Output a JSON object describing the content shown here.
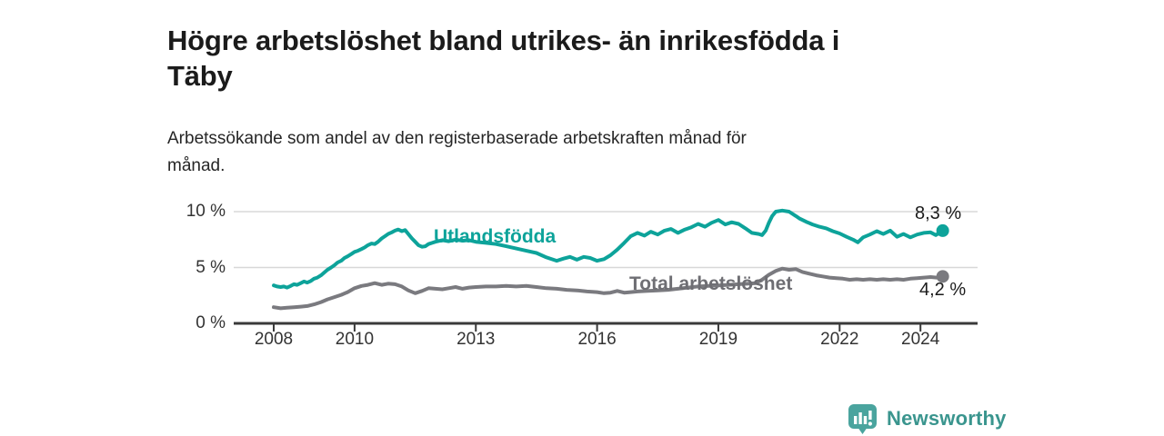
{
  "header": {
    "title_lines": [
      "Högre arbetslöshet bland utrikes- än inrikesfödda i",
      "Täby"
    ],
    "subtitle_lines": [
      "Arbetssökande som andel av den registerbaserade arbetskraften månad för",
      "månad."
    ]
  },
  "chart_data": {
    "type": "line",
    "title": "Högre arbetslöshet bland utrikes- än inrikesfödda i Täby",
    "subtitle": "Arbetssökande som andel av den registerbaserade arbetskraften månad för månad.",
    "unit": "%",
    "grid": "horizontal",
    "grid_color": "#d8d8d8",
    "axis_color": "#3a3a3a",
    "ylim": [
      0,
      10
    ],
    "y_ticks": [
      {
        "value": 0,
        "label": "0 %"
      },
      {
        "value": 5,
        "label": "5 %"
      },
      {
        "value": 10,
        "label": "10 %"
      }
    ],
    "x_ticks": [
      2008,
      2010,
      2013,
      2016,
      2019,
      2022,
      2024
    ],
    "xlim_years": [
      2008,
      2024.55
    ],
    "series": [
      {
        "name": "Utlandsfödda",
        "color": "#0da39a",
        "label_color": "#0da39a",
        "end_label": "8,3 %",
        "end_value": 8.3,
        "points": [
          [
            2008.0,
            3.4
          ],
          [
            2008.08,
            3.3
          ],
          [
            2008.17,
            3.25
          ],
          [
            2008.25,
            3.3
          ],
          [
            2008.33,
            3.2
          ],
          [
            2008.42,
            3.35
          ],
          [
            2008.5,
            3.5
          ],
          [
            2008.58,
            3.45
          ],
          [
            2008.67,
            3.6
          ],
          [
            2008.75,
            3.75
          ],
          [
            2008.83,
            3.65
          ],
          [
            2008.92,
            3.8
          ],
          [
            2009.0,
            4.0
          ],
          [
            2009.08,
            4.1
          ],
          [
            2009.17,
            4.3
          ],
          [
            2009.25,
            4.55
          ],
          [
            2009.33,
            4.8
          ],
          [
            2009.42,
            5.0
          ],
          [
            2009.5,
            5.2
          ],
          [
            2009.58,
            5.45
          ],
          [
            2009.67,
            5.6
          ],
          [
            2009.75,
            5.85
          ],
          [
            2009.83,
            6.0
          ],
          [
            2009.92,
            6.2
          ],
          [
            2010.0,
            6.4
          ],
          [
            2010.08,
            6.5
          ],
          [
            2010.17,
            6.65
          ],
          [
            2010.25,
            6.8
          ],
          [
            2010.33,
            7.0
          ],
          [
            2010.42,
            7.15
          ],
          [
            2010.5,
            7.1
          ],
          [
            2010.58,
            7.3
          ],
          [
            2010.67,
            7.6
          ],
          [
            2010.75,
            7.8
          ],
          [
            2010.83,
            8.0
          ],
          [
            2010.92,
            8.15
          ],
          [
            2011.0,
            8.3
          ],
          [
            2011.08,
            8.4
          ],
          [
            2011.17,
            8.25
          ],
          [
            2011.25,
            8.35
          ],
          [
            2011.33,
            8.0
          ],
          [
            2011.42,
            7.6
          ],
          [
            2011.5,
            7.3
          ],
          [
            2011.58,
            7.0
          ],
          [
            2011.67,
            6.85
          ],
          [
            2011.75,
            6.9
          ],
          [
            2011.83,
            7.1
          ],
          [
            2011.92,
            7.2
          ],
          [
            2012.0,
            7.3
          ],
          [
            2012.17,
            7.45
          ],
          [
            2012.33,
            7.35
          ],
          [
            2012.5,
            7.5
          ],
          [
            2012.67,
            7.4
          ],
          [
            2012.83,
            7.45
          ],
          [
            2013.0,
            7.3
          ],
          [
            2013.25,
            7.2
          ],
          [
            2013.5,
            7.1
          ],
          [
            2013.75,
            6.9
          ],
          [
            2014.0,
            6.7
          ],
          [
            2014.25,
            6.5
          ],
          [
            2014.5,
            6.3
          ],
          [
            2014.75,
            5.9
          ],
          [
            2015.0,
            5.6
          ],
          [
            2015.17,
            5.8
          ],
          [
            2015.33,
            5.95
          ],
          [
            2015.5,
            5.7
          ],
          [
            2015.67,
            5.95
          ],
          [
            2015.83,
            5.85
          ],
          [
            2016.0,
            5.6
          ],
          [
            2016.17,
            5.75
          ],
          [
            2016.33,
            6.1
          ],
          [
            2016.5,
            6.6
          ],
          [
            2016.67,
            7.2
          ],
          [
            2016.83,
            7.8
          ],
          [
            2017.0,
            8.1
          ],
          [
            2017.17,
            7.85
          ],
          [
            2017.33,
            8.2
          ],
          [
            2017.5,
            7.95
          ],
          [
            2017.67,
            8.3
          ],
          [
            2017.83,
            8.45
          ],
          [
            2018.0,
            8.1
          ],
          [
            2018.17,
            8.4
          ],
          [
            2018.33,
            8.6
          ],
          [
            2018.5,
            8.9
          ],
          [
            2018.67,
            8.65
          ],
          [
            2018.83,
            9.0
          ],
          [
            2019.0,
            9.25
          ],
          [
            2019.17,
            8.85
          ],
          [
            2019.33,
            9.05
          ],
          [
            2019.5,
            8.9
          ],
          [
            2019.67,
            8.5
          ],
          [
            2019.83,
            8.1
          ],
          [
            2020.0,
            8.0
          ],
          [
            2020.08,
            7.9
          ],
          [
            2020.17,
            8.3
          ],
          [
            2020.25,
            9.0
          ],
          [
            2020.33,
            9.6
          ],
          [
            2020.42,
            10.0
          ],
          [
            2020.58,
            10.1
          ],
          [
            2020.75,
            10.0
          ],
          [
            2020.92,
            9.6
          ],
          [
            2021.0,
            9.4
          ],
          [
            2021.17,
            9.1
          ],
          [
            2021.33,
            8.85
          ],
          [
            2021.5,
            8.65
          ],
          [
            2021.67,
            8.5
          ],
          [
            2021.83,
            8.25
          ],
          [
            2022.0,
            8.05
          ],
          [
            2022.17,
            7.75
          ],
          [
            2022.33,
            7.5
          ],
          [
            2022.45,
            7.25
          ],
          [
            2022.58,
            7.7
          ],
          [
            2022.75,
            7.95
          ],
          [
            2022.92,
            8.25
          ],
          [
            2023.08,
            8.0
          ],
          [
            2023.25,
            8.3
          ],
          [
            2023.42,
            7.75
          ],
          [
            2023.58,
            8.0
          ],
          [
            2023.75,
            7.7
          ],
          [
            2023.92,
            7.95
          ],
          [
            2024.08,
            8.1
          ],
          [
            2024.25,
            8.15
          ],
          [
            2024.38,
            7.9
          ],
          [
            2024.55,
            8.3
          ]
        ]
      },
      {
        "name": "Total arbetslöshet",
        "color": "#7a7a7f",
        "label_color": "#6e6e73",
        "end_label": "4,2 %",
        "end_value": 4.2,
        "points": [
          [
            2008.0,
            1.45
          ],
          [
            2008.17,
            1.35
          ],
          [
            2008.33,
            1.4
          ],
          [
            2008.5,
            1.45
          ],
          [
            2008.67,
            1.5
          ],
          [
            2008.83,
            1.55
          ],
          [
            2009.0,
            1.7
          ],
          [
            2009.17,
            1.9
          ],
          [
            2009.33,
            2.15
          ],
          [
            2009.5,
            2.35
          ],
          [
            2009.67,
            2.55
          ],
          [
            2009.83,
            2.8
          ],
          [
            2010.0,
            3.15
          ],
          [
            2010.17,
            3.35
          ],
          [
            2010.33,
            3.45
          ],
          [
            2010.5,
            3.6
          ],
          [
            2010.67,
            3.45
          ],
          [
            2010.83,
            3.55
          ],
          [
            2011.0,
            3.5
          ],
          [
            2011.17,
            3.3
          ],
          [
            2011.33,
            2.95
          ],
          [
            2011.5,
            2.7
          ],
          [
            2011.67,
            2.9
          ],
          [
            2011.83,
            3.15
          ],
          [
            2012.0,
            3.1
          ],
          [
            2012.17,
            3.05
          ],
          [
            2012.33,
            3.15
          ],
          [
            2012.5,
            3.25
          ],
          [
            2012.67,
            3.1
          ],
          [
            2012.83,
            3.2
          ],
          [
            2013.0,
            3.25
          ],
          [
            2013.25,
            3.3
          ],
          [
            2013.5,
            3.3
          ],
          [
            2013.75,
            3.35
          ],
          [
            2014.0,
            3.3
          ],
          [
            2014.25,
            3.35
          ],
          [
            2014.5,
            3.25
          ],
          [
            2014.75,
            3.15
          ],
          [
            2015.0,
            3.1
          ],
          [
            2015.25,
            3.0
          ],
          [
            2015.5,
            2.95
          ],
          [
            2015.75,
            2.85
          ],
          [
            2016.0,
            2.8
          ],
          [
            2016.17,
            2.7
          ],
          [
            2016.33,
            2.75
          ],
          [
            2016.5,
            2.9
          ],
          [
            2016.67,
            2.75
          ],
          [
            2016.83,
            2.8
          ],
          [
            2017.0,
            2.85
          ],
          [
            2017.25,
            2.9
          ],
          [
            2017.5,
            2.95
          ],
          [
            2017.75,
            3.0
          ],
          [
            2018.0,
            3.1
          ],
          [
            2018.25,
            3.2
          ],
          [
            2018.5,
            3.3
          ],
          [
            2018.75,
            3.35
          ],
          [
            2019.0,
            3.4
          ],
          [
            2019.25,
            3.45
          ],
          [
            2019.5,
            3.5
          ],
          [
            2019.75,
            3.55
          ],
          [
            2019.92,
            3.6
          ],
          [
            2020.08,
            3.9
          ],
          [
            2020.25,
            4.35
          ],
          [
            2020.42,
            4.7
          ],
          [
            2020.58,
            4.9
          ],
          [
            2020.75,
            4.8
          ],
          [
            2020.92,
            4.85
          ],
          [
            2021.08,
            4.6
          ],
          [
            2021.25,
            4.45
          ],
          [
            2021.42,
            4.3
          ],
          [
            2021.58,
            4.2
          ],
          [
            2021.75,
            4.1
          ],
          [
            2021.92,
            4.05
          ],
          [
            2022.08,
            4.0
          ],
          [
            2022.25,
            3.9
          ],
          [
            2022.42,
            3.95
          ],
          [
            2022.58,
            3.9
          ],
          [
            2022.75,
            3.95
          ],
          [
            2022.92,
            3.9
          ],
          [
            2023.08,
            3.95
          ],
          [
            2023.25,
            3.9
          ],
          [
            2023.42,
            3.95
          ],
          [
            2023.58,
            3.9
          ],
          [
            2023.75,
            4.0
          ],
          [
            2023.92,
            4.05
          ],
          [
            2024.08,
            4.1
          ],
          [
            2024.25,
            4.15
          ],
          [
            2024.4,
            4.1
          ],
          [
            2024.55,
            4.2
          ]
        ]
      }
    ]
  },
  "footer": {
    "brand": "Newsworthy",
    "brand_text_color": "#3a958e",
    "brand_badge_color": "#4aa49e",
    "logo_icon": "newsworthy-bar-chart-badge"
  }
}
